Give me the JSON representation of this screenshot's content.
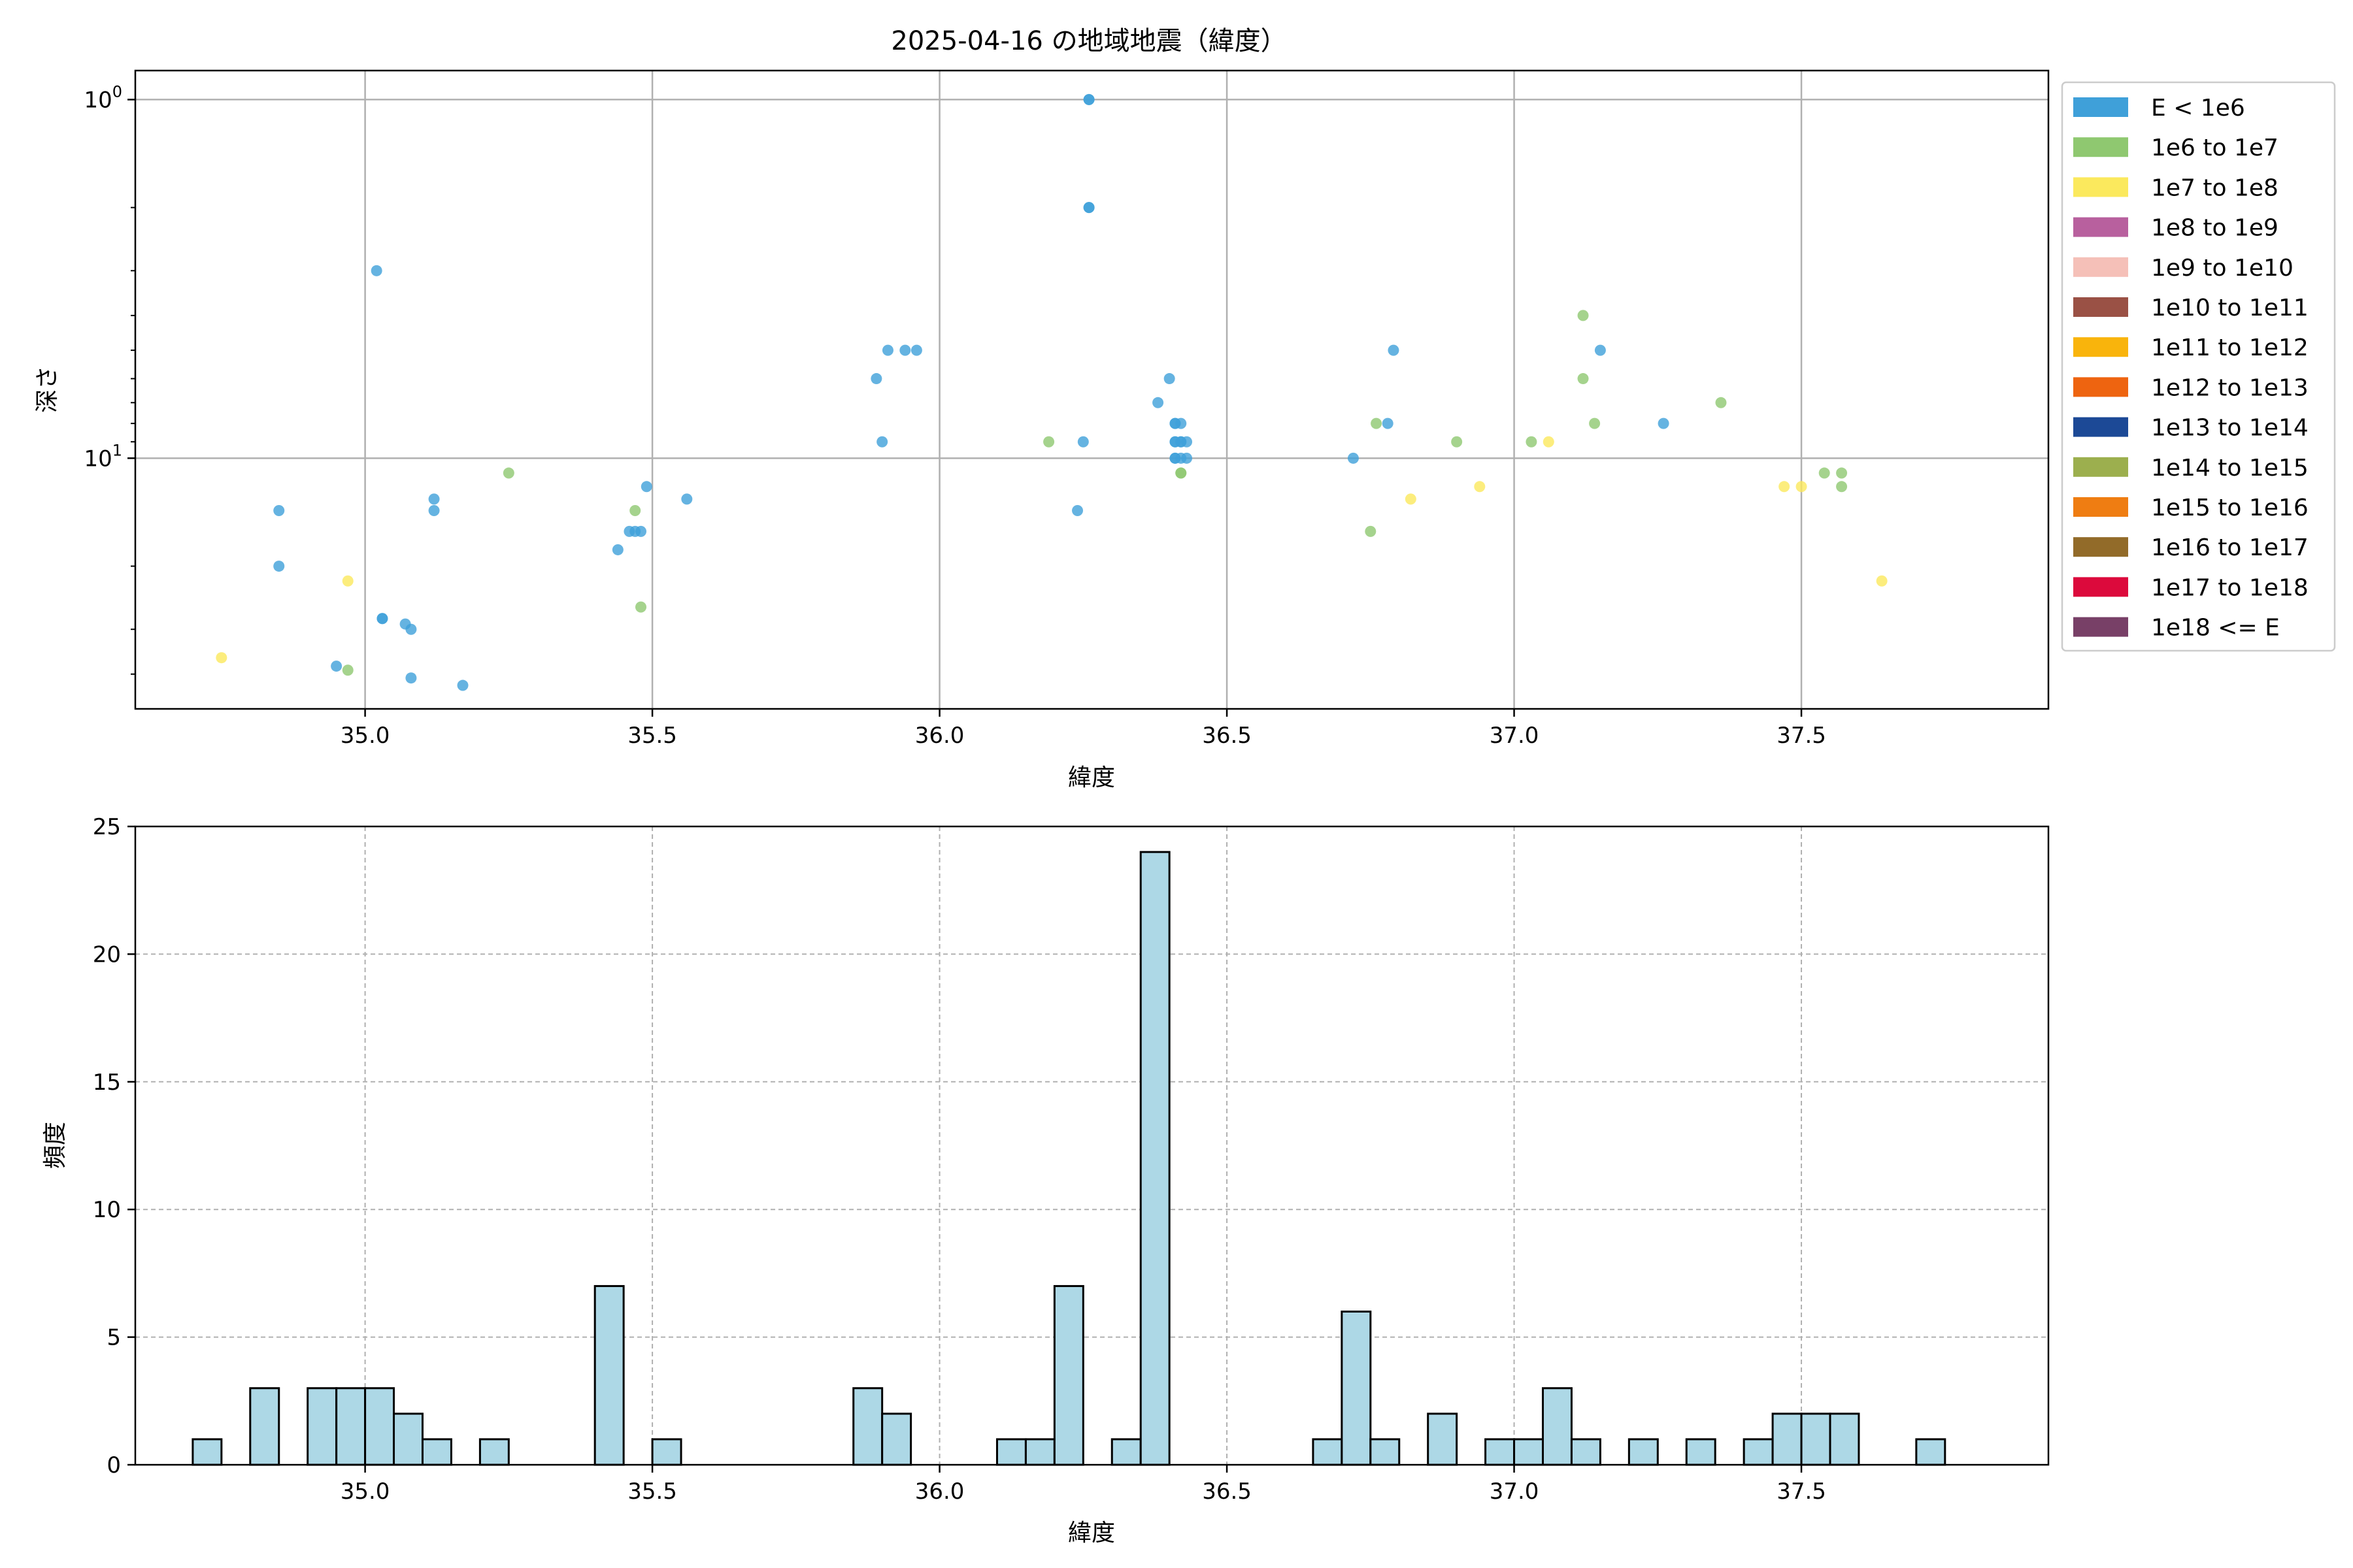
{
  "chart_data": [
    {
      "type": "scatter",
      "title": "2025-04-16 の地域地震（緯度）",
      "xlabel": "緯度",
      "ylabel": "深さ",
      "yscale": "log",
      "yaxis_inverted": true,
      "xlim": [
        34.6,
        37.93
      ],
      "ylim": [
        50,
        0.83
      ],
      "x_ticks": [
        "35.0",
        "35.5",
        "36.0",
        "36.5",
        "37.0",
        "37.5"
      ],
      "y_ticks": [
        {
          "base": "10",
          "exp": "0",
          "value": 1
        },
        {
          "base": "10",
          "exp": "1",
          "value": 10
        }
      ],
      "grid": true,
      "legend_position": "outside-right",
      "legend": [
        {
          "label": "E < 1e6",
          "color": "#3fa0d9"
        },
        {
          "label": "1e6 to 1e7",
          "color": "#8fc870"
        },
        {
          "label": "1e7 to 1e8",
          "color": "#fbe95d"
        },
        {
          "label": "1e8 to 1e9",
          "color": "#b8609e"
        },
        {
          "label": "1e9 to 1e10",
          "color": "#f5c0b8"
        },
        {
          "label": "1e10 to 1e11",
          "color": "#9a5145"
        },
        {
          "label": "1e11 to 1e12",
          "color": "#f9b40c"
        },
        {
          "label": "1e12 to 1e13",
          "color": "#ee6410"
        },
        {
          "label": "1e13 to 1e14",
          "color": "#1c4996"
        },
        {
          "label": "1e14 to 1e15",
          "color": "#9caf4e"
        },
        {
          "label": "1e15 to 1e16",
          "color": "#ef7d12"
        },
        {
          "label": "1e16 to 1e17",
          "color": "#926b29"
        },
        {
          "label": "1e17 to 1e18",
          "color": "#dc0a3c"
        },
        {
          "label": "1e18 <= E",
          "color": "#784067"
        }
      ],
      "series": [
        {
          "label": "E < 1e6",
          "points": [
            [
              34.85,
              20
            ],
            [
              34.85,
              14
            ],
            [
              34.95,
              38
            ],
            [
              35.02,
              3
            ],
            [
              35.03,
              28
            ],
            [
              35.03,
              28
            ],
            [
              35.07,
              29
            ],
            [
              35.08,
              30
            ],
            [
              35.08,
              41
            ],
            [
              35.12,
              13
            ],
            [
              35.12,
              14
            ],
            [
              35.17,
              43
            ],
            [
              35.44,
              18
            ],
            [
              35.46,
              16
            ],
            [
              35.47,
              16
            ],
            [
              35.48,
              16
            ],
            [
              35.49,
              12
            ],
            [
              35.56,
              13
            ],
            [
              35.89,
              6
            ],
            [
              35.9,
              9
            ],
            [
              35.91,
              5
            ],
            [
              35.94,
              5
            ],
            [
              35.96,
              5
            ],
            [
              36.24,
              14
            ],
            [
              36.25,
              9
            ],
            [
              36.26,
              2
            ],
            [
              36.26,
              2
            ],
            [
              36.26,
              1
            ],
            [
              36.26,
              1
            ],
            [
              36.38,
              7
            ],
            [
              36.4,
              6
            ],
            [
              36.41,
              8
            ],
            [
              36.41,
              8
            ],
            [
              36.42,
              8
            ],
            [
              36.41,
              9
            ],
            [
              36.41,
              9
            ],
            [
              36.42,
              9
            ],
            [
              36.42,
              9
            ],
            [
              36.41,
              10
            ],
            [
              36.41,
              10
            ],
            [
              36.42,
              10
            ],
            [
              36.43,
              10
            ],
            [
              36.43,
              9
            ],
            [
              36.72,
              10
            ],
            [
              36.78,
              8
            ],
            [
              36.79,
              5
            ],
            [
              37.15,
              5
            ],
            [
              37.26,
              8
            ]
          ]
        },
        {
          "label": "1e6 to 1e7",
          "points": [
            [
              34.97,
              39
            ],
            [
              35.25,
              11
            ],
            [
              35.47,
              14
            ],
            [
              35.48,
              26
            ],
            [
              36.19,
              9
            ],
            [
              36.42,
              11
            ],
            [
              36.42,
              11
            ],
            [
              36.75,
              16
            ],
            [
              36.76,
              8
            ],
            [
              36.9,
              9
            ],
            [
              37.03,
              9
            ],
            [
              37.12,
              4
            ],
            [
              37.12,
              6
            ],
            [
              37.14,
              8
            ],
            [
              37.36,
              7
            ],
            [
              37.54,
              11
            ],
            [
              37.57,
              11
            ],
            [
              37.57,
              12
            ]
          ]
        },
        {
          "label": "1e7 to 1e8",
          "points": [
            [
              34.75,
              36
            ],
            [
              34.97,
              22
            ],
            [
              36.82,
              13
            ],
            [
              36.94,
              12
            ],
            [
              37.06,
              9
            ],
            [
              37.47,
              12
            ],
            [
              37.5,
              12
            ],
            [
              37.64,
              22
            ]
          ]
        }
      ]
    },
    {
      "type": "bar",
      "title": "",
      "xlabel": "緯度",
      "ylabel": "頻度",
      "xlim": [
        34.6,
        37.93
      ],
      "ylim": [
        0,
        25
      ],
      "x_ticks": [
        "35.0",
        "35.5",
        "36.0",
        "36.5",
        "37.0",
        "37.5"
      ],
      "y_ticks": [
        "0",
        "5",
        "10",
        "15",
        "20",
        "25"
      ],
      "grid": true,
      "bar_color": "#add8e6",
      "bin_width": 0.05,
      "bins": [
        [
          34.725,
          1
        ],
        [
          34.825,
          3
        ],
        [
          34.925,
          3
        ],
        [
          34.975,
          3
        ],
        [
          35.025,
          3
        ],
        [
          35.075,
          2
        ],
        [
          35.125,
          1
        ],
        [
          35.225,
          1
        ],
        [
          35.425,
          7
        ],
        [
          35.525,
          1
        ],
        [
          35.875,
          3
        ],
        [
          35.925,
          2
        ],
        [
          36.125,
          1
        ],
        [
          36.175,
          1
        ],
        [
          36.225,
          7
        ],
        [
          36.325,
          1
        ],
        [
          36.375,
          24
        ],
        [
          36.675,
          1
        ],
        [
          36.725,
          6
        ],
        [
          36.775,
          1
        ],
        [
          36.875,
          2
        ],
        [
          36.975,
          1
        ],
        [
          37.025,
          1
        ],
        [
          37.075,
          3
        ],
        [
          37.125,
          1
        ],
        [
          37.225,
          1
        ],
        [
          37.325,
          1
        ],
        [
          37.425,
          1
        ],
        [
          37.475,
          2
        ],
        [
          37.525,
          2
        ],
        [
          37.575,
          2
        ],
        [
          37.725,
          1
        ]
      ]
    }
  ]
}
